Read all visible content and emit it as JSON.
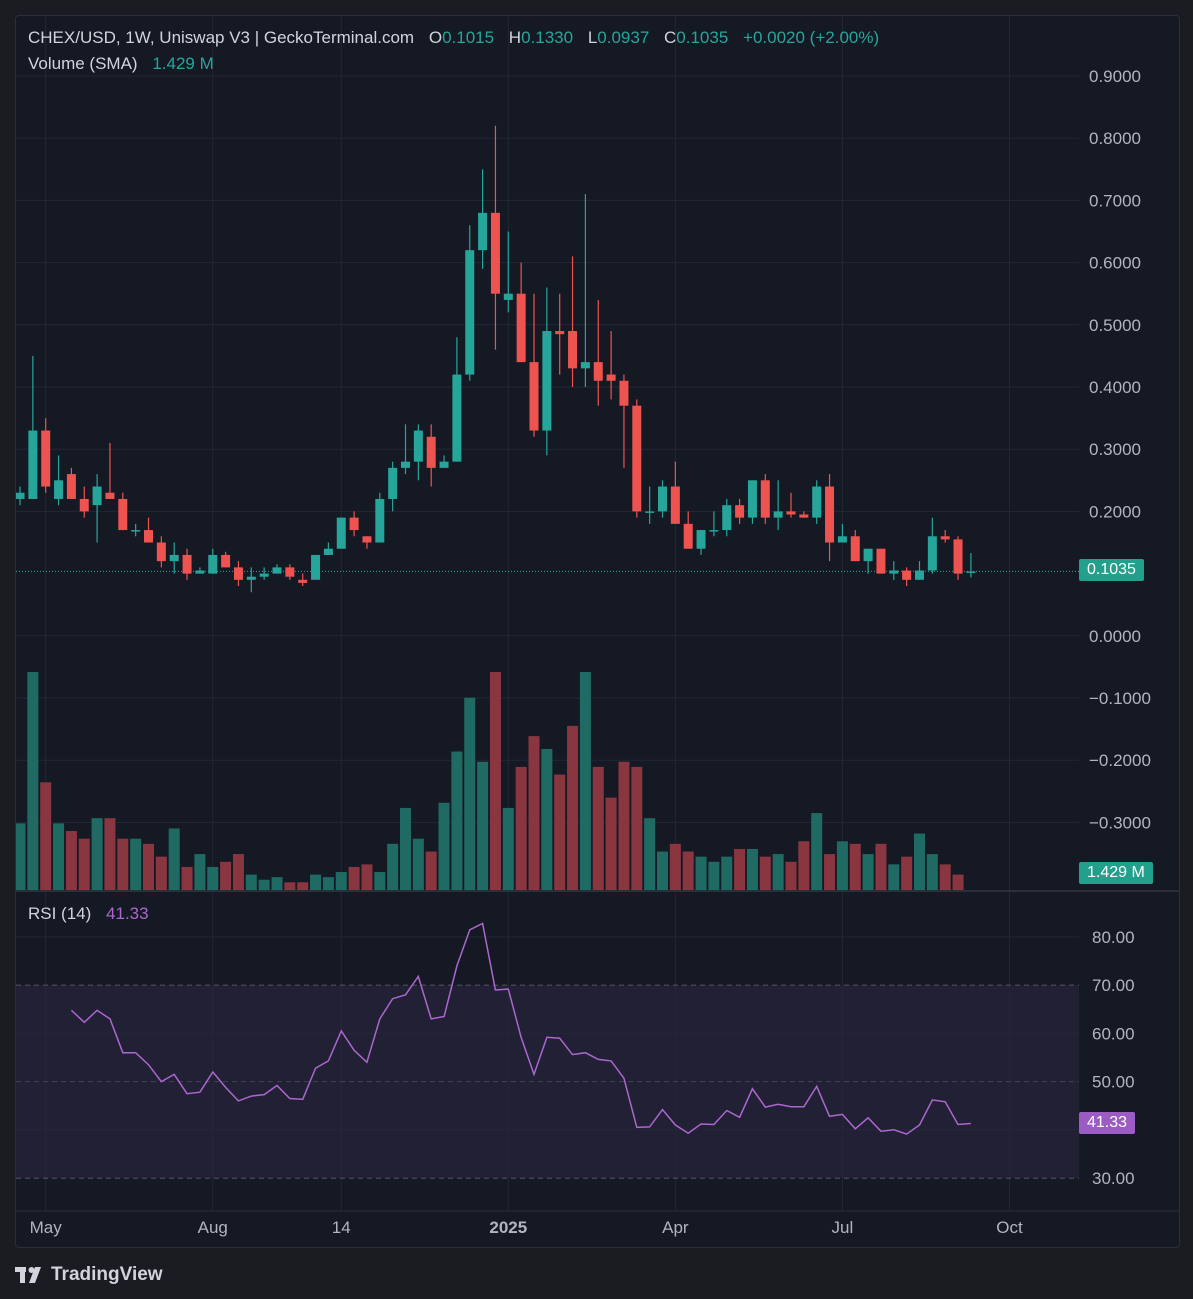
{
  "legend": {
    "symbol": "CHEX/USD, 1W, Uniswap V3 | GeckoTerminal.com",
    "o_label": "O",
    "o_value": "0.1015",
    "h_label": "H",
    "h_value": "0.1330",
    "l_label": "L",
    "l_value": "0.0937",
    "c_label": "C",
    "c_value": "0.1035",
    "change": "+0.0020 (+2.00%)",
    "volume_label": "Volume (SMA)",
    "volume_value": "1.429 M",
    "rsi_label": "RSI (14)",
    "rsi_value": "41.33"
  },
  "tags": {
    "price": "0.1035",
    "volume": "1.429 M",
    "rsi": "41.33"
  },
  "branding": {
    "name": "TradingView"
  },
  "colors": {
    "up": "#26a69a",
    "down": "#ef5350",
    "vol_up": "#1f6b63",
    "vol_down": "#8a3640",
    "rsi": "#ab67cf",
    "rsi_band": "#2a2540"
  },
  "chart_data": [
    {
      "type": "candlestick",
      "title": "CHEX/USD, 1W, Uniswap V3 | GeckoTerminal.com",
      "price_axis_ticks": [
        "0.9000",
        "0.8000",
        "0.7000",
        "0.6000",
        "0.5000",
        "0.4000",
        "0.3000",
        "0.2000",
        "0.0000",
        "−0.1000",
        "−0.2000",
        "−0.3000"
      ],
      "ylim": [
        -0.4,
        0.9
      ],
      "time_axis_ticks": [
        {
          "label": "May",
          "index": 2
        },
        {
          "label": "Aug",
          "index": 15
        },
        {
          "label": "14",
          "index": 25
        },
        {
          "label": "2025",
          "index": 38,
          "bold": true
        },
        {
          "label": "Apr",
          "index": 51
        },
        {
          "label": "Jul",
          "index": 64
        },
        {
          "label": "Oct",
          "index": 77
        }
      ],
      "last_price": 0.1035,
      "candles": [
        {
          "o": 0.22,
          "h": 0.24,
          "l": 0.21,
          "c": 0.23
        },
        {
          "o": 0.22,
          "h": 0.45,
          "l": 0.22,
          "c": 0.33
        },
        {
          "o": 0.33,
          "h": 0.35,
          "l": 0.23,
          "c": 0.24
        },
        {
          "o": 0.22,
          "h": 0.29,
          "l": 0.21,
          "c": 0.25
        },
        {
          "o": 0.26,
          "h": 0.27,
          "l": 0.22,
          "c": 0.22
        },
        {
          "o": 0.22,
          "h": 0.24,
          "l": 0.19,
          "c": 0.2
        },
        {
          "o": 0.21,
          "h": 0.26,
          "l": 0.15,
          "c": 0.24
        },
        {
          "o": 0.23,
          "h": 0.31,
          "l": 0.22,
          "c": 0.22
        },
        {
          "o": 0.22,
          "h": 0.23,
          "l": 0.17,
          "c": 0.17
        },
        {
          "o": 0.17,
          "h": 0.18,
          "l": 0.16,
          "c": 0.17
        },
        {
          "o": 0.17,
          "h": 0.19,
          "l": 0.15,
          "c": 0.15
        },
        {
          "o": 0.15,
          "h": 0.16,
          "l": 0.11,
          "c": 0.12
        },
        {
          "o": 0.12,
          "h": 0.15,
          "l": 0.1,
          "c": 0.13
        },
        {
          "o": 0.13,
          "h": 0.14,
          "l": 0.09,
          "c": 0.1
        },
        {
          "o": 0.1,
          "h": 0.11,
          "l": 0.1,
          "c": 0.105
        },
        {
          "o": 0.1,
          "h": 0.14,
          "l": 0.1,
          "c": 0.13
        },
        {
          "o": 0.13,
          "h": 0.135,
          "l": 0.11,
          "c": 0.11
        },
        {
          "o": 0.11,
          "h": 0.12,
          "l": 0.08,
          "c": 0.09
        },
        {
          "o": 0.09,
          "h": 0.11,
          "l": 0.07,
          "c": 0.095
        },
        {
          "o": 0.095,
          "h": 0.11,
          "l": 0.09,
          "c": 0.1
        },
        {
          "o": 0.1,
          "h": 0.115,
          "l": 0.1,
          "c": 0.11
        },
        {
          "o": 0.11,
          "h": 0.115,
          "l": 0.09,
          "c": 0.095
        },
        {
          "o": 0.09,
          "h": 0.1,
          "l": 0.08,
          "c": 0.085
        },
        {
          "o": 0.09,
          "h": 0.13,
          "l": 0.09,
          "c": 0.13
        },
        {
          "o": 0.13,
          "h": 0.15,
          "l": 0.13,
          "c": 0.14
        },
        {
          "o": 0.14,
          "h": 0.19,
          "l": 0.14,
          "c": 0.19
        },
        {
          "o": 0.19,
          "h": 0.2,
          "l": 0.16,
          "c": 0.17
        },
        {
          "o": 0.16,
          "h": 0.16,
          "l": 0.14,
          "c": 0.15
        },
        {
          "o": 0.15,
          "h": 0.23,
          "l": 0.15,
          "c": 0.22
        },
        {
          "o": 0.22,
          "h": 0.28,
          "l": 0.2,
          "c": 0.27
        },
        {
          "o": 0.27,
          "h": 0.34,
          "l": 0.26,
          "c": 0.28
        },
        {
          "o": 0.28,
          "h": 0.34,
          "l": 0.25,
          "c": 0.33
        },
        {
          "o": 0.32,
          "h": 0.34,
          "l": 0.24,
          "c": 0.27
        },
        {
          "o": 0.27,
          "h": 0.29,
          "l": 0.27,
          "c": 0.28
        },
        {
          "o": 0.28,
          "h": 0.48,
          "l": 0.28,
          "c": 0.42
        },
        {
          "o": 0.42,
          "h": 0.66,
          "l": 0.41,
          "c": 0.62
        },
        {
          "o": 0.62,
          "h": 0.75,
          "l": 0.59,
          "c": 0.68
        },
        {
          "o": 0.68,
          "h": 0.82,
          "l": 0.46,
          "c": 0.55
        },
        {
          "o": 0.54,
          "h": 0.65,
          "l": 0.52,
          "c": 0.55
        },
        {
          "o": 0.55,
          "h": 0.6,
          "l": 0.44,
          "c": 0.44
        },
        {
          "o": 0.44,
          "h": 0.55,
          "l": 0.32,
          "c": 0.33
        },
        {
          "o": 0.33,
          "h": 0.56,
          "l": 0.29,
          "c": 0.49
        },
        {
          "o": 0.49,
          "h": 0.55,
          "l": 0.42,
          "c": 0.485
        },
        {
          "o": 0.49,
          "h": 0.61,
          "l": 0.4,
          "c": 0.43
        },
        {
          "o": 0.43,
          "h": 0.71,
          "l": 0.4,
          "c": 0.44
        },
        {
          "o": 0.44,
          "h": 0.54,
          "l": 0.37,
          "c": 0.41
        },
        {
          "o": 0.42,
          "h": 0.49,
          "l": 0.38,
          "c": 0.41
        },
        {
          "o": 0.41,
          "h": 0.42,
          "l": 0.27,
          "c": 0.37
        },
        {
          "o": 0.37,
          "h": 0.38,
          "l": 0.19,
          "c": 0.2
        },
        {
          "o": 0.2,
          "h": 0.24,
          "l": 0.18,
          "c": 0.2
        },
        {
          "o": 0.2,
          "h": 0.25,
          "l": 0.19,
          "c": 0.24
        },
        {
          "o": 0.24,
          "h": 0.28,
          "l": 0.18,
          "c": 0.18
        },
        {
          "o": 0.18,
          "h": 0.2,
          "l": 0.14,
          "c": 0.14
        },
        {
          "o": 0.14,
          "h": 0.17,
          "l": 0.13,
          "c": 0.17
        },
        {
          "o": 0.17,
          "h": 0.2,
          "l": 0.16,
          "c": 0.17
        },
        {
          "o": 0.17,
          "h": 0.22,
          "l": 0.16,
          "c": 0.21
        },
        {
          "o": 0.21,
          "h": 0.22,
          "l": 0.18,
          "c": 0.19
        },
        {
          "o": 0.19,
          "h": 0.25,
          "l": 0.18,
          "c": 0.25
        },
        {
          "o": 0.25,
          "h": 0.26,
          "l": 0.18,
          "c": 0.19
        },
        {
          "o": 0.19,
          "h": 0.25,
          "l": 0.17,
          "c": 0.2
        },
        {
          "o": 0.2,
          "h": 0.23,
          "l": 0.19,
          "c": 0.195
        },
        {
          "o": 0.195,
          "h": 0.2,
          "l": 0.19,
          "c": 0.19
        },
        {
          "o": 0.19,
          "h": 0.25,
          "l": 0.18,
          "c": 0.24
        },
        {
          "o": 0.24,
          "h": 0.26,
          "l": 0.12,
          "c": 0.15
        },
        {
          "o": 0.15,
          "h": 0.18,
          "l": 0.15,
          "c": 0.16
        },
        {
          "o": 0.16,
          "h": 0.17,
          "l": 0.12,
          "c": 0.12
        },
        {
          "o": 0.12,
          "h": 0.14,
          "l": 0.1,
          "c": 0.14
        },
        {
          "o": 0.14,
          "h": 0.14,
          "l": 0.1,
          "c": 0.1
        },
        {
          "o": 0.1,
          "h": 0.12,
          "l": 0.09,
          "c": 0.105
        },
        {
          "o": 0.105,
          "h": 0.11,
          "l": 0.08,
          "c": 0.09
        },
        {
          "o": 0.09,
          "h": 0.12,
          "l": 0.09,
          "c": 0.105
        },
        {
          "o": 0.105,
          "h": 0.19,
          "l": 0.1,
          "c": 0.16
        },
        {
          "o": 0.16,
          "h": 0.17,
          "l": 0.15,
          "c": 0.155
        },
        {
          "o": 0.155,
          "h": 0.16,
          "l": 0.09,
          "c": 0.1
        },
        {
          "o": 0.1015,
          "h": 0.133,
          "l": 0.0937,
          "c": 0.1035
        }
      ]
    },
    {
      "type": "bar",
      "title": "Volume (SMA)",
      "last_value": "1.429 M",
      "values": [
        2.6,
        8.5,
        4.2,
        2.6,
        2.3,
        2.0,
        2.8,
        2.8,
        2.0,
        2.0,
        1.8,
        1.3,
        2.4,
        0.9,
        1.4,
        0.9,
        1.1,
        1.4,
        0.6,
        0.4,
        0.5,
        0.3,
        0.3,
        0.6,
        0.5,
        0.7,
        0.9,
        1.0,
        0.7,
        1.8,
        3.2,
        2.0,
        1.5,
        3.4,
        5.4,
        7.5,
        5.0,
        8.5,
        3.2,
        4.8,
        6.0,
        5.5,
        4.5,
        6.4,
        8.5,
        4.8,
        3.6,
        5.0,
        4.8,
        2.8,
        1.5,
        1.8,
        1.5,
        1.3,
        1.1,
        1.3,
        1.6,
        1.6,
        1.3,
        1.4,
        1.1,
        1.9,
        3.0,
        1.4,
        1.9,
        1.8,
        1.4,
        1.8,
        1.0,
        1.3,
        2.2,
        1.4,
        1.0,
        0.6
      ]
    },
    {
      "type": "line",
      "title": "RSI (14)",
      "last_value": "41.33",
      "y_ticks": [
        "80.00",
        "70.00",
        "60.00",
        "50.00",
        "30.00"
      ],
      "ylim": [
        27,
        84
      ],
      "band": [
        30,
        70
      ],
      "midline": 50,
      "values": [
        64.8,
        62.3,
        64.8,
        63.0,
        56.0,
        56.0,
        53.5,
        50.0,
        51.5,
        47.5,
        47.8,
        52.0,
        48.8,
        46.0,
        47.0,
        47.3,
        49.2,
        46.5,
        46.3,
        52.8,
        54.3,
        60.5,
        56.5,
        54.0,
        63.0,
        67.2,
        68.0,
        71.8,
        63.0,
        63.5,
        74.0,
        81.5,
        82.8,
        69.0,
        69.2,
        59.2,
        51.5,
        59.2,
        59.0,
        55.6,
        56.0,
        54.6,
        54.3,
        50.7,
        40.5,
        40.6,
        44.2,
        41.0,
        39.3,
        41.2,
        41.1,
        44.0,
        42.6,
        48.5,
        44.7,
        45.3,
        44.8,
        44.8,
        49.0,
        42.8,
        43.2,
        40.2,
        42.5,
        39.7,
        40.0,
        39.1,
        41.0,
        46.2,
        45.8,
        41.1,
        41.3
      ]
    }
  ]
}
